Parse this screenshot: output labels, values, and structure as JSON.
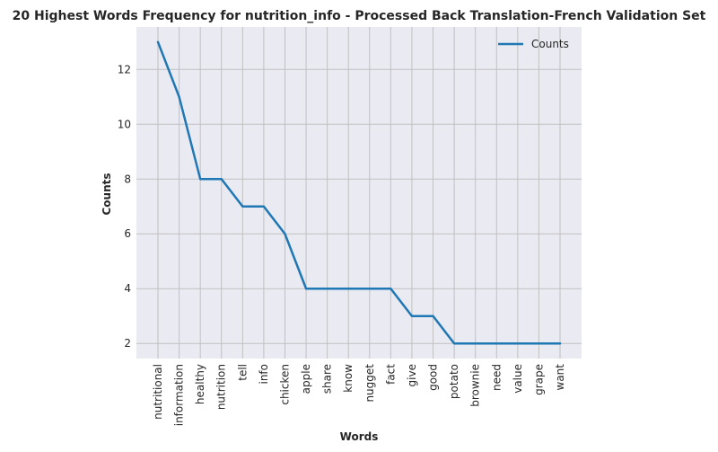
{
  "chart_data": {
    "type": "line",
    "title": "20 Highest Words Frequency for nutrition_info - Processed Back Translation-French Validation Set",
    "xlabel": "Words",
    "ylabel": "Counts",
    "categories": [
      "nutritional",
      "information",
      "healthy",
      "nutrition",
      "tell",
      "info",
      "chicken",
      "apple",
      "share",
      "know",
      "nugget",
      "fact",
      "give",
      "good",
      "potato",
      "brownie",
      "need",
      "value",
      "grape",
      "want"
    ],
    "series": [
      {
        "name": "Counts",
        "values": [
          13,
          11,
          8,
          8,
          7,
          7,
          6,
          4,
          4,
          4,
          4,
          4,
          3,
          3,
          2,
          2,
          2,
          2,
          2,
          2
        ]
      }
    ],
    "yticks": [
      2,
      4,
      6,
      8,
      10,
      12
    ],
    "ylim": [
      1.45,
      13.55
    ],
    "grid": true,
    "legend_position": "top-right",
    "colors": {
      "line": "#1f77b4",
      "plot_bg": "#eaeaf2",
      "grid": "#c0c0c0"
    }
  }
}
